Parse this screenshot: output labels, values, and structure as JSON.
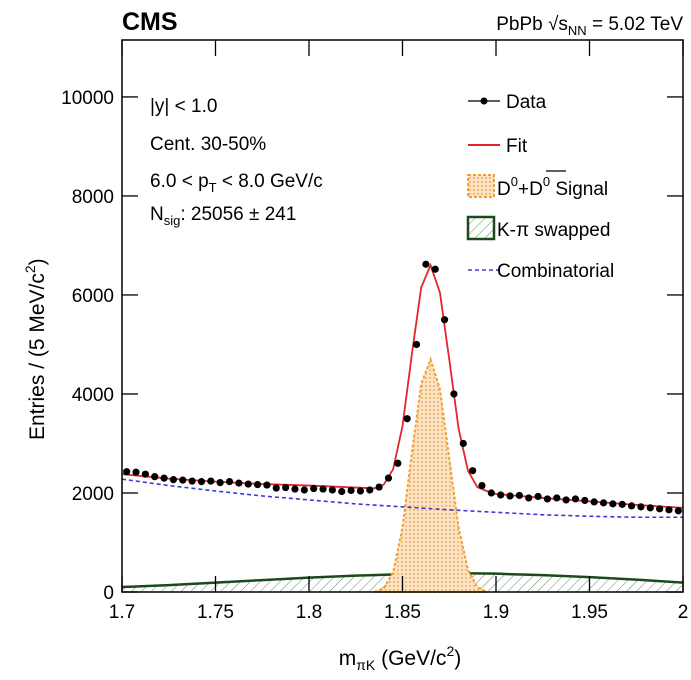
{
  "chart_data": {
    "type": "scatter",
    "title": "CMS",
    "energy_label": [
      "PbPb √",
      "s",
      "NN",
      " = 5.02 TeV"
    ],
    "annotations": [
      [
        "|y| < 1.0"
      ],
      [
        "Cent. 30-50%"
      ],
      [
        "6.0 < p",
        "T",
        " < 8.0 GeV/c"
      ],
      [
        "N",
        "sig",
        ": 25056 ± 241"
      ]
    ],
    "x_label": [
      "m",
      "πK",
      " (GeV/c",
      "2",
      ")"
    ],
    "y_label": [
      "Entries / (5 MeV/c",
      "2",
      ")"
    ],
    "xlim": [
      1.7,
      2.0
    ],
    "xticks": [
      1.7,
      1.75,
      1.8,
      1.85,
      1.9,
      1.95,
      2
    ],
    "ylim": [
      0,
      11150
    ],
    "yticks": [
      0,
      2000,
      4000,
      6000,
      8000,
      10000
    ],
    "series": [
      {
        "name": "Data",
        "color": "#000000",
        "style": "points",
        "x": [
          1.7025,
          1.7075,
          1.7125,
          1.7175,
          1.7225,
          1.7275,
          1.7325,
          1.7375,
          1.7425,
          1.7475,
          1.7525,
          1.7575,
          1.7625,
          1.7675,
          1.7725,
          1.7775,
          1.7825,
          1.7875,
          1.7925,
          1.7975,
          1.8025,
          1.8075,
          1.8125,
          1.8175,
          1.8225,
          1.8275,
          1.8325,
          1.8375,
          1.8425,
          1.8475,
          1.8525,
          1.8575,
          1.8625,
          1.8675,
          1.8725,
          1.8775,
          1.8825,
          1.8875,
          1.8925,
          1.8975,
          1.9025,
          1.9075,
          1.9125,
          1.9175,
          1.9225,
          1.9275,
          1.9325,
          1.9375,
          1.9425,
          1.9475,
          1.9525,
          1.9575,
          1.9625,
          1.9675,
          1.9725,
          1.9775,
          1.9825,
          1.9875,
          1.9925,
          1.9975
        ],
        "values": [
          2430,
          2420,
          2380,
          2330,
          2300,
          2270,
          2260,
          2240,
          2230,
          2240,
          2210,
          2230,
          2200,
          2180,
          2170,
          2160,
          2100,
          2110,
          2080,
          2060,
          2090,
          2080,
          2060,
          2030,
          2050,
          2040,
          2060,
          2120,
          2300,
          2600,
          3500,
          5000,
          6620,
          6520,
          5500,
          4000,
          3000,
          2450,
          2150,
          2000,
          1960,
          1940,
          1950,
          1900,
          1930,
          1880,
          1900,
          1860,
          1880,
          1850,
          1820,
          1800,
          1780,
          1770,
          1740,
          1720,
          1700,
          1680,
          1660,
          1640
        ]
      },
      {
        "name": "Fit",
        "color": "#e3262b",
        "style": "line",
        "x": [
          1.7,
          1.725,
          1.75,
          1.775,
          1.8,
          1.825,
          1.835,
          1.84,
          1.845,
          1.85,
          1.855,
          1.86,
          1.865,
          1.87,
          1.875,
          1.88,
          1.885,
          1.89,
          1.895,
          1.9,
          1.925,
          1.95,
          1.975,
          2.0
        ],
        "values": [
          2380,
          2290,
          2230,
          2180,
          2150,
          2110,
          2095,
          2170,
          2480,
          3350,
          4800,
          6150,
          6600,
          6050,
          4700,
          3300,
          2450,
          2120,
          2040,
          1980,
          1900,
          1830,
          1760,
          1700
        ]
      },
      {
        "name": [
          "D",
          "0",
          "+",
          "D",
          "0",
          " Signal"
        ],
        "color": "#f0a030",
        "style": "dotted-fill",
        "x": [
          1.835,
          1.84,
          1.845,
          1.85,
          1.855,
          1.86,
          1.865,
          1.87,
          1.875,
          1.88,
          1.885,
          1.89,
          1.895
        ],
        "values": [
          0,
          80,
          400,
          1300,
          2800,
          4200,
          4700,
          4100,
          2700,
          1300,
          450,
          100,
          0
        ]
      },
      {
        "name": "K-π swapped",
        "color": "#1d4a1d",
        "style": "hatched-fill",
        "x": [
          1.7,
          1.725,
          1.75,
          1.775,
          1.8,
          1.825,
          1.85,
          1.875,
          1.9,
          1.925,
          1.95,
          1.975,
          2.0
        ],
        "values": [
          100,
          140,
          190,
          240,
          290,
          330,
          360,
          380,
          370,
          340,
          300,
          250,
          190
        ]
      },
      {
        "name": "Combinatorial",
        "color": "#3a3ad8",
        "style": "dashed",
        "x": [
          1.7,
          1.725,
          1.75,
          1.775,
          1.8,
          1.825,
          1.85,
          1.875,
          1.9,
          1.925,
          1.95,
          1.975,
          2.0
        ],
        "values": [
          2280,
          2150,
          2040,
          1940,
          1860,
          1780,
          1720,
          1660,
          1610,
          1560,
          1530,
          1510,
          1510
        ]
      }
    ]
  }
}
